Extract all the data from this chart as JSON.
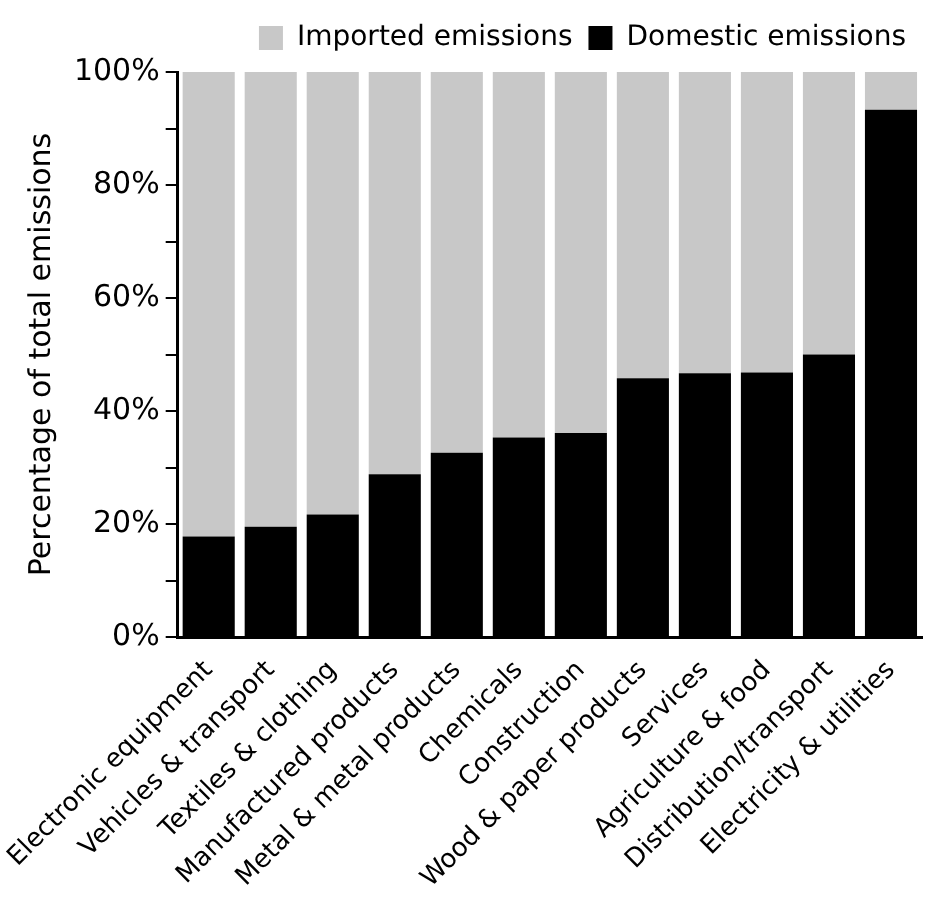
{
  "chart_data": {
    "type": "bar",
    "stacked": true,
    "ylabel": "Percentage of total emissions",
    "categories": [
      "Electronic equipment",
      "Vehicles & transport",
      "Textiles & clothing",
      "Manufactured products",
      "Metal & metal products",
      "Chemicals",
      "Construction",
      "Wood & paper products",
      "Services",
      "Agriculture & food",
      "Distribution/transport",
      "Electricity & utilities"
    ],
    "series": [
      {
        "name": "Domestic emissions",
        "color": "#000000",
        "values": [
          17.8,
          19.5,
          21.7,
          28.8,
          32.6,
          35.3,
          36.1,
          45.8,
          46.7,
          46.8,
          50.0,
          93.3
        ]
      },
      {
        "name": "Imported emissions",
        "color": "#c8c8c8",
        "values": [
          82.2,
          80.5,
          78.3,
          71.2,
          67.4,
          64.7,
          63.9,
          54.2,
          53.3,
          53.2,
          50.0,
          6.7
        ]
      }
    ],
    "ylim": [
      0,
      100
    ],
    "yticks": [
      {
        "value": 0,
        "label": "0%"
      },
      {
        "value": 10,
        "label": null
      },
      {
        "value": 20,
        "label": "20%"
      },
      {
        "value": 30,
        "label": null
      },
      {
        "value": 40,
        "label": "40%"
      },
      {
        "value": 50,
        "label": null
      },
      {
        "value": 60,
        "label": "60%"
      },
      {
        "value": 70,
        "label": null
      },
      {
        "value": 80,
        "label": "80%"
      },
      {
        "value": 90,
        "label": null
      },
      {
        "value": 100,
        "label": "100%"
      }
    ],
    "grid": false,
    "legend": "top"
  }
}
